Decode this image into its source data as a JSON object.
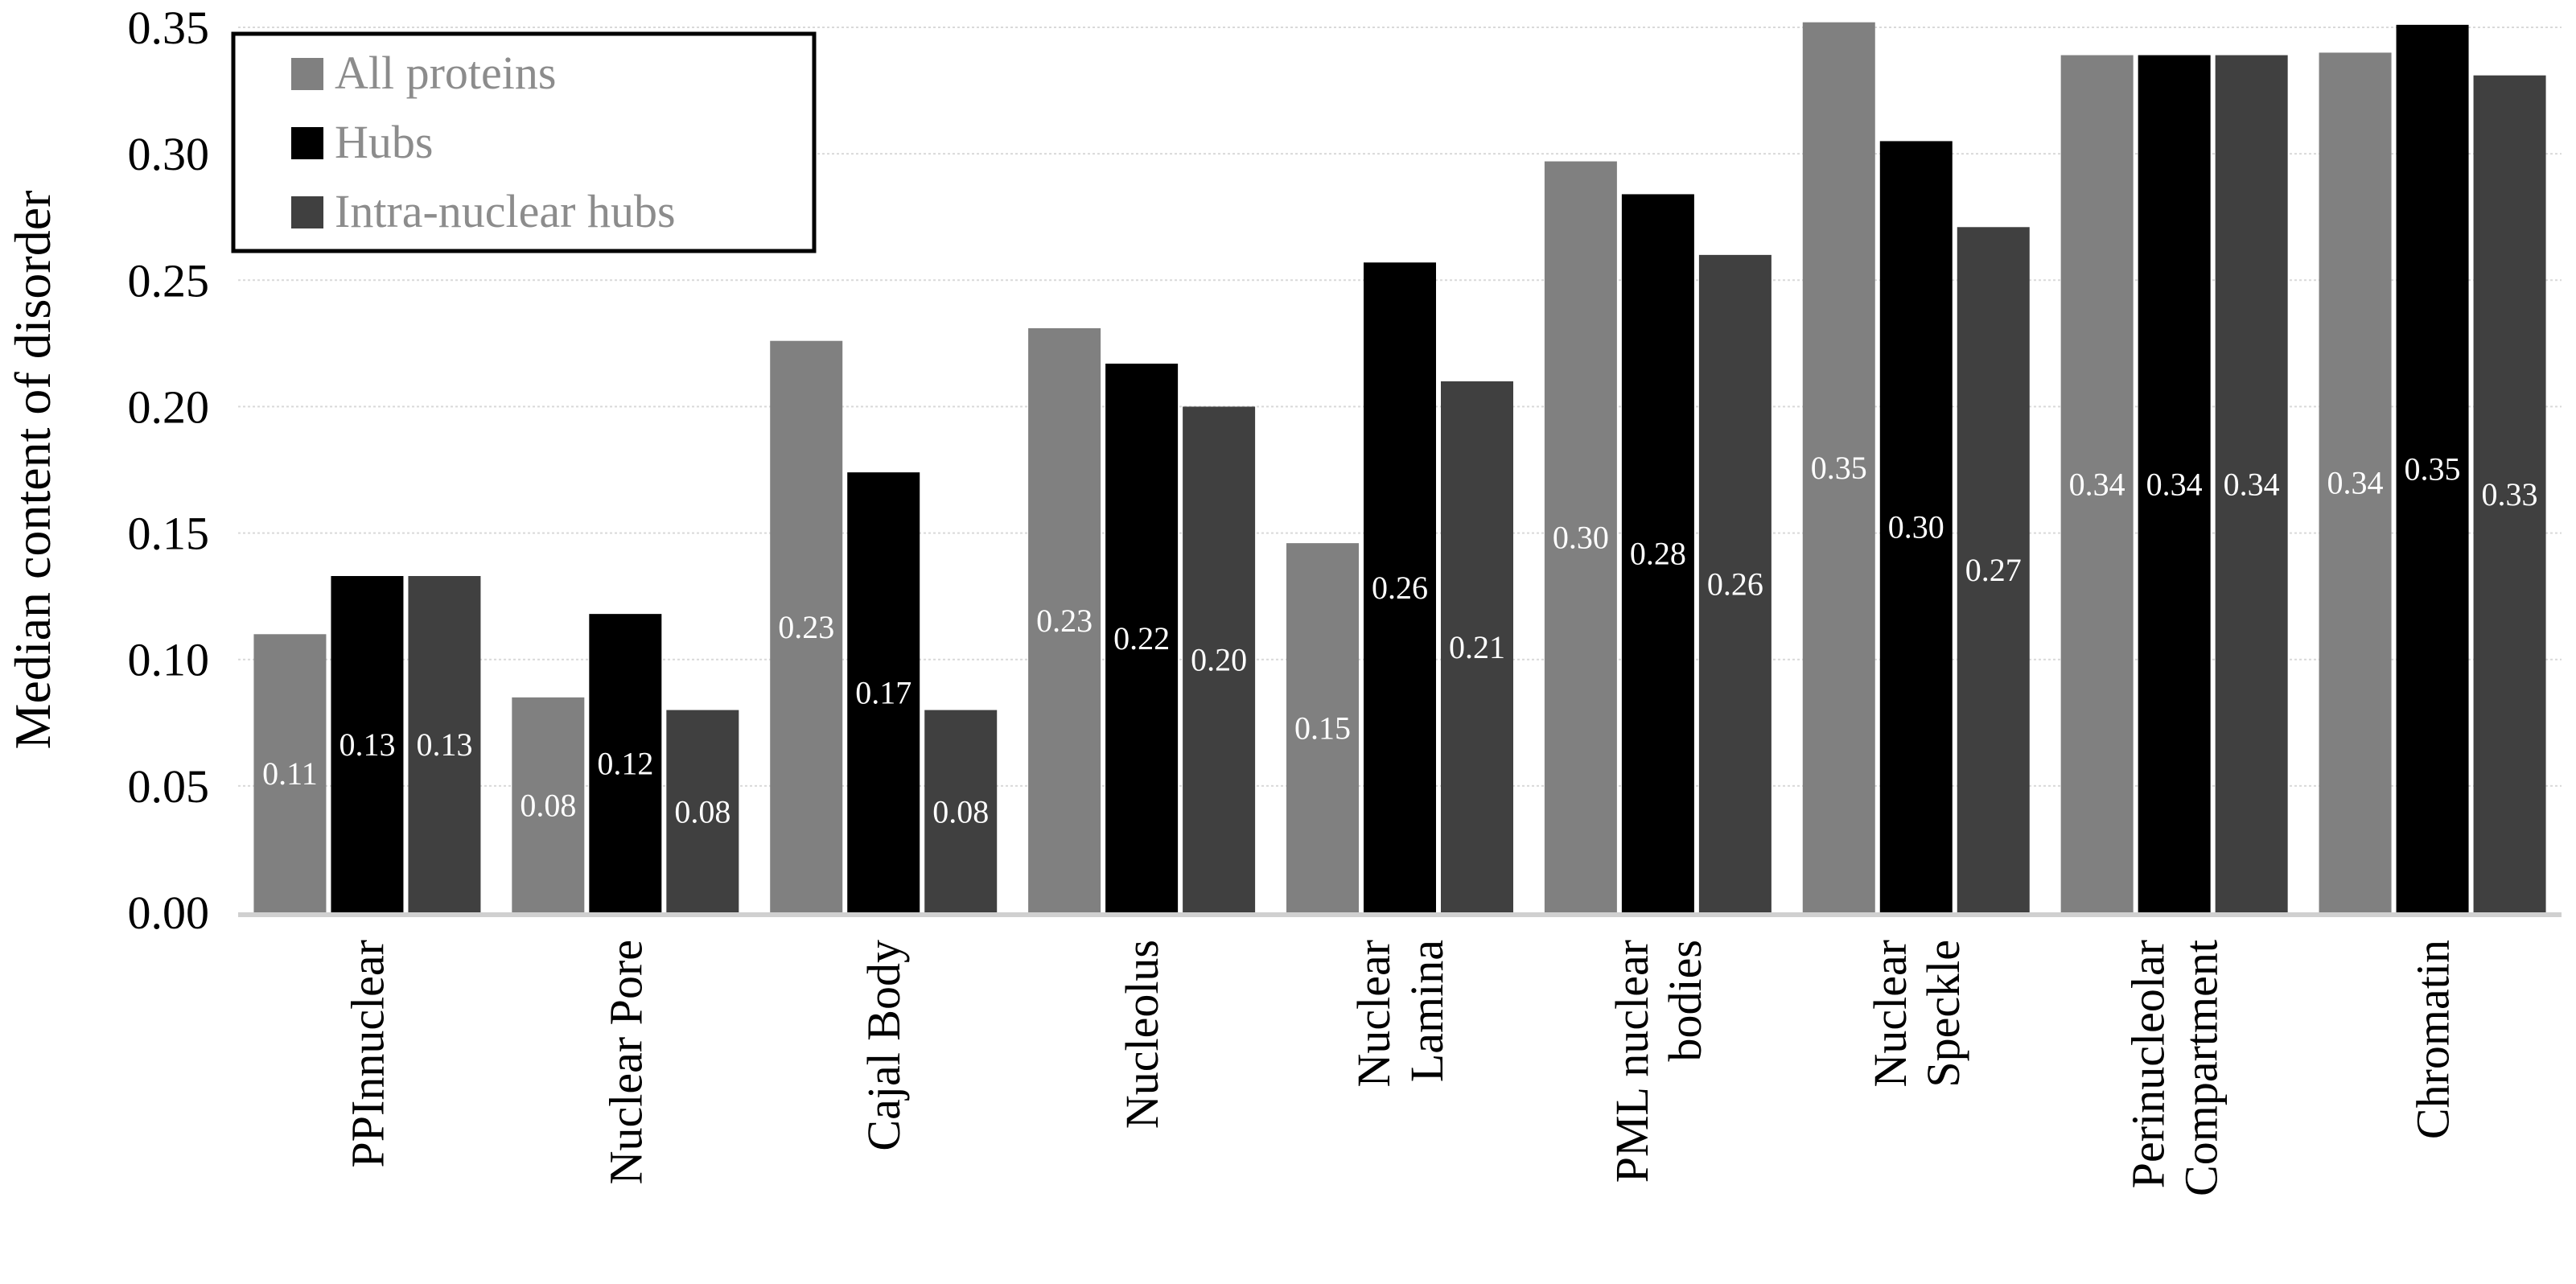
{
  "chart_data": {
    "type": "bar",
    "title": "",
    "xlabel": "",
    "ylabel": "Median content of disorder",
    "ylim": [
      0,
      0.35
    ],
    "yticks": [
      "0.00",
      "0.05",
      "0.10",
      "0.15",
      "0.20",
      "0.25",
      "0.30",
      "0.35"
    ],
    "grid": true,
    "legend_position": "top-left",
    "categories": [
      [
        "PPInnuclear"
      ],
      [
        "Nuclear Pore"
      ],
      [
        "Cajal Body"
      ],
      [
        "Nucleolus"
      ],
      [
        "Nuclear",
        "Lamina"
      ],
      [
        "PML nuclear",
        "bodies"
      ],
      [
        "Nuclear",
        "Speckle"
      ],
      [
        "Perinucleolar",
        "Compartment"
      ],
      [
        "Chromatin"
      ]
    ],
    "series": [
      {
        "name": "All proteins",
        "color": "#808080",
        "values": [
          0.11,
          0.085,
          0.226,
          0.231,
          0.146,
          0.297,
          0.352,
          0.339,
          0.34
        ],
        "labels": [
          "0.11",
          "0.08",
          "0.23",
          "0.23",
          "0.15",
          "0.30",
          "0.35",
          "0.34",
          "0.34"
        ]
      },
      {
        "name": "Hubs",
        "color": "#000000",
        "values": [
          0.133,
          0.118,
          0.174,
          0.217,
          0.257,
          0.284,
          0.305,
          0.339,
          0.351
        ],
        "labels": [
          "0.13",
          "0.12",
          "0.17",
          "0.22",
          "0.26",
          "0.28",
          "0.30",
          "0.34",
          "0.35"
        ]
      },
      {
        "name": "Intra-nuclear hubs",
        "color": "#404040",
        "values": [
          0.133,
          0.08,
          0.08,
          0.2,
          0.21,
          0.26,
          0.271,
          0.339,
          0.331
        ],
        "labels": [
          "0.13",
          "0.08",
          "0.08",
          "0.20",
          "0.21",
          "0.26",
          "0.27",
          "0.34",
          "0.33"
        ]
      }
    ]
  }
}
